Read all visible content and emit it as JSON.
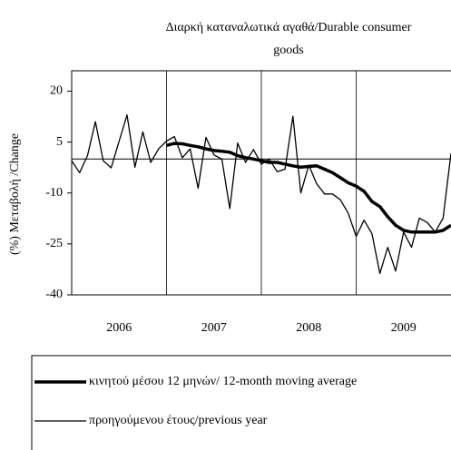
{
  "chart_data": {
    "type": "line",
    "title": [
      "Διαρκή καταναλωτικά αγαθά/Durable consumer",
      "goods"
    ],
    "y_label": "(%) Μεταβολή /Change",
    "x_labels": [
      "2006",
      "2007",
      "2008",
      "2009"
    ],
    "ylim": [
      -40,
      26
    ],
    "yticks": [
      20,
      5,
      -10,
      -25,
      -40
    ],
    "series": [
      {
        "name": "κινητού μέσου 12 μηνών/ 12-month moving average",
        "color": "#000000",
        "width": 3.5,
        "values": [
          null,
          null,
          null,
          null,
          null,
          null,
          null,
          null,
          null,
          null,
          null,
          null,
          4,
          4.6,
          4.5,
          4,
          3.6,
          3,
          2.5,
          2.3,
          2,
          1,
          0.4,
          0,
          -0.5,
          -1,
          -1,
          -1.5,
          -2,
          -2.4,
          -2.2,
          -2,
          -3,
          -4,
          -5.5,
          -7,
          -8,
          -9.5,
          -12.5,
          -14,
          -17,
          -19.5,
          -21,
          -21.5,
          -21.5,
          -21.5,
          -21.5,
          -21,
          -19.5
        ]
      },
      {
        "name": "προηγούμενου έτους/previous year",
        "color": "#000000",
        "width": 1.3,
        "values": [
          -0.5,
          -4,
          1,
          11,
          -0.5,
          -2.6,
          5.3,
          13,
          -2.4,
          8,
          -1,
          3,
          5.3,
          6.6,
          0.4,
          3,
          -8.6,
          6.4,
          1.2,
          0,
          -14.6,
          4.7,
          -1,
          2.8,
          -1.5,
          0,
          -3.7,
          -3,
          12.6,
          -10,
          -1.8,
          -7.3,
          -10.3,
          -10.3,
          -12,
          -16,
          -22.8,
          -18,
          -22,
          -33.7,
          -26,
          -33,
          -21.5,
          -26,
          -17.4,
          -18.7,
          -21.5,
          -17.4,
          1.7
        ]
      }
    ]
  }
}
